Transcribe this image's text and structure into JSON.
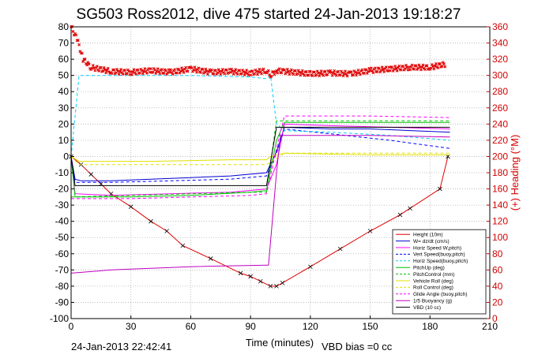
{
  "chart_data": {
    "type": "line",
    "title": "SG503 Ross2012, dive 475 started 24-Jan-2013 19:18:27",
    "xlabel": "Time (minutes)",
    "ylabel_right": "(+) Heading (°M)",
    "timestamp": "24-Jan-2013 22:42:41",
    "vbd_bias": "VBD bias =0 cc",
    "xlim": [
      0,
      210
    ],
    "ylim": [
      -100,
      80
    ],
    "ylim_right": [
      0,
      360
    ],
    "x_ticks": [
      0,
      30,
      60,
      90,
      120,
      150,
      180,
      210
    ],
    "y_ticks": [
      80,
      70,
      60,
      50,
      40,
      30,
      20,
      10,
      0,
      -10,
      -20,
      -30,
      -40,
      -50,
      -60,
      -70,
      -80,
      -90,
      -100
    ],
    "y_ticks_right": [
      360,
      340,
      320,
      300,
      280,
      260,
      240,
      220,
      200,
      180,
      160,
      140,
      120,
      100,
      80,
      60,
      40,
      20,
      0
    ],
    "legend_position": "bottom-right",
    "colors": {
      "heading": "#e00000",
      "axis_right": "#d40000"
    },
    "series": [
      {
        "name": "Height (10m)",
        "color": "#e00000",
        "style": "solid",
        "marker": "x",
        "points": [
          [
            0,
            0
          ],
          [
            5,
            -5
          ],
          [
            10,
            -11
          ],
          [
            15,
            -17
          ],
          [
            20,
            -23
          ],
          [
            30,
            -31
          ],
          [
            40,
            -40
          ],
          [
            48,
            -46
          ],
          [
            56,
            -55
          ],
          [
            70,
            -63
          ],
          [
            85,
            -72
          ],
          [
            90,
            -74
          ],
          [
            95,
            -77
          ],
          [
            100,
            -80
          ],
          [
            103,
            -80
          ],
          [
            106,
            -78
          ],
          [
            120,
            -68
          ],
          [
            135,
            -57
          ],
          [
            150,
            -46
          ],
          [
            165,
            -36
          ],
          [
            170,
            -32
          ],
          [
            185,
            -20
          ],
          [
            189,
            0
          ]
        ]
      },
      {
        "name": "W= dz/dt (cm/s)",
        "color": "#0000d0",
        "style": "solid",
        "points": [
          [
            0,
            0
          ],
          [
            2,
            -14
          ],
          [
            5,
            -15
          ],
          [
            20,
            -15
          ],
          [
            40,
            -14
          ],
          [
            60,
            -13
          ],
          [
            80,
            -12
          ],
          [
            98,
            -10
          ],
          [
            103,
            3
          ],
          [
            107,
            18
          ],
          [
            130,
            17
          ],
          [
            150,
            17
          ],
          [
            170,
            16
          ],
          [
            190,
            15
          ]
        ]
      },
      {
        "name": "Horiz Speed W,pitch)",
        "color": "#ff00ff",
        "style": "solid",
        "points": [
          [
            0,
            0
          ],
          [
            2,
            -23
          ],
          [
            20,
            -24
          ],
          [
            50,
            -23
          ],
          [
            80,
            -22
          ],
          [
            98,
            -20
          ],
          [
            103,
            -5
          ],
          [
            107,
            20
          ],
          [
            130,
            19
          ],
          [
            160,
            18
          ],
          [
            190,
            17
          ]
        ]
      },
      {
        "name": "Vert Speed(buoy,pitch)",
        "color": "#0000ff",
        "style": "dashed",
        "points": [
          [
            0,
            0
          ],
          [
            2,
            -16
          ],
          [
            20,
            -16
          ],
          [
            50,
            -15
          ],
          [
            80,
            -14
          ],
          [
            98,
            -12
          ],
          [
            103,
            2
          ],
          [
            107,
            17
          ],
          [
            130,
            14
          ],
          [
            160,
            10
          ],
          [
            190,
            5
          ]
        ]
      },
      {
        "name": "Horiz Speed(buoy,pitch)",
        "color": "#00d0ff",
        "style": "dashed",
        "points": [
          [
            0,
            0
          ],
          [
            4,
            50
          ],
          [
            30,
            50
          ],
          [
            60,
            50
          ],
          [
            90,
            49
          ],
          [
            98,
            48
          ],
          [
            100,
            50
          ],
          [
            103,
            20
          ],
          [
            107,
            16
          ],
          [
            130,
            15
          ],
          [
            160,
            13
          ],
          [
            190,
            10
          ]
        ]
      },
      {
        "name": "PitchUp (deg)",
        "color": "#00c000",
        "style": "solid",
        "points": [
          [
            0,
            0
          ],
          [
            2,
            -25
          ],
          [
            30,
            -25
          ],
          [
            60,
            -24
          ],
          [
            90,
            -22
          ],
          [
            98,
            -21
          ],
          [
            103,
            10
          ],
          [
            107,
            21
          ],
          [
            150,
            21
          ],
          [
            190,
            21
          ]
        ]
      },
      {
        "name": "PitchControl (mm)",
        "color": "#00c000",
        "style": "dashed",
        "points": [
          [
            0,
            -25
          ],
          [
            30,
            -24
          ],
          [
            60,
            -23
          ],
          [
            90,
            -22
          ],
          [
            98,
            -22
          ],
          [
            103,
            22
          ],
          [
            107,
            22
          ],
          [
            190,
            22
          ]
        ]
      },
      {
        "name": "Vehicle Roll (deg)",
        "color": "#e0e000",
        "style": "solid",
        "points": [
          [
            0,
            0
          ],
          [
            4,
            -3
          ],
          [
            40,
            -3
          ],
          [
            80,
            -2
          ],
          [
            98,
            -2
          ],
          [
            100,
            0
          ],
          [
            107,
            2
          ],
          [
            150,
            1
          ],
          [
            190,
            1
          ]
        ]
      },
      {
        "name": "Roll Control (deg)",
        "color": "#e0e000",
        "style": "dashed",
        "points": [
          [
            0,
            0
          ],
          [
            4,
            -5
          ],
          [
            40,
            -5
          ],
          [
            98,
            -5
          ],
          [
            107,
            2
          ],
          [
            190,
            2
          ]
        ]
      },
      {
        "name": "Glide Angle (buoy,pitch)",
        "color": "#ff00ff",
        "style": "dashed",
        "points": [
          [
            0,
            -26
          ],
          [
            30,
            -26
          ],
          [
            60,
            -25
          ],
          [
            90,
            -24
          ],
          [
            98,
            -23
          ],
          [
            103,
            5
          ],
          [
            107,
            25
          ],
          [
            150,
            25
          ],
          [
            190,
            24
          ]
        ]
      },
      {
        "name": "1/5 Buoyancy (g)",
        "color": "#c000c0",
        "style": "solid",
        "points": [
          [
            0,
            -72
          ],
          [
            20,
            -70
          ],
          [
            60,
            -68
          ],
          [
            98,
            -67
          ],
          [
            99,
            -67
          ],
          [
            103,
            -10
          ],
          [
            105,
            13
          ],
          [
            150,
            13
          ],
          [
            190,
            12
          ]
        ]
      },
      {
        "name": "VBD (10 cc)",
        "color": "#000000",
        "style": "solid",
        "points": [
          [
            0,
            0
          ],
          [
            2,
            -18
          ],
          [
            98,
            -18
          ],
          [
            103,
            18
          ],
          [
            190,
            18
          ]
        ]
      },
      {
        "name": "Heading",
        "color": "#e00000",
        "style": "markers",
        "axis": "right",
        "points": [
          [
            0,
            360
          ],
          [
            3,
            345
          ],
          [
            6,
            320
          ],
          [
            10,
            310
          ],
          [
            20,
            305
          ],
          [
            30,
            304
          ],
          [
            40,
            306
          ],
          [
            50,
            304
          ],
          [
            60,
            308
          ],
          [
            70,
            304
          ],
          [
            80,
            305
          ],
          [
            90,
            303
          ],
          [
            98,
            306
          ],
          [
            100,
            300
          ],
          [
            103,
            306
          ],
          [
            107,
            305
          ],
          [
            120,
            302
          ],
          [
            130,
            303
          ],
          [
            140,
            302
          ],
          [
            150,
            306
          ],
          [
            160,
            308
          ],
          [
            170,
            310
          ],
          [
            180,
            310
          ],
          [
            188,
            314
          ]
        ]
      }
    ]
  }
}
